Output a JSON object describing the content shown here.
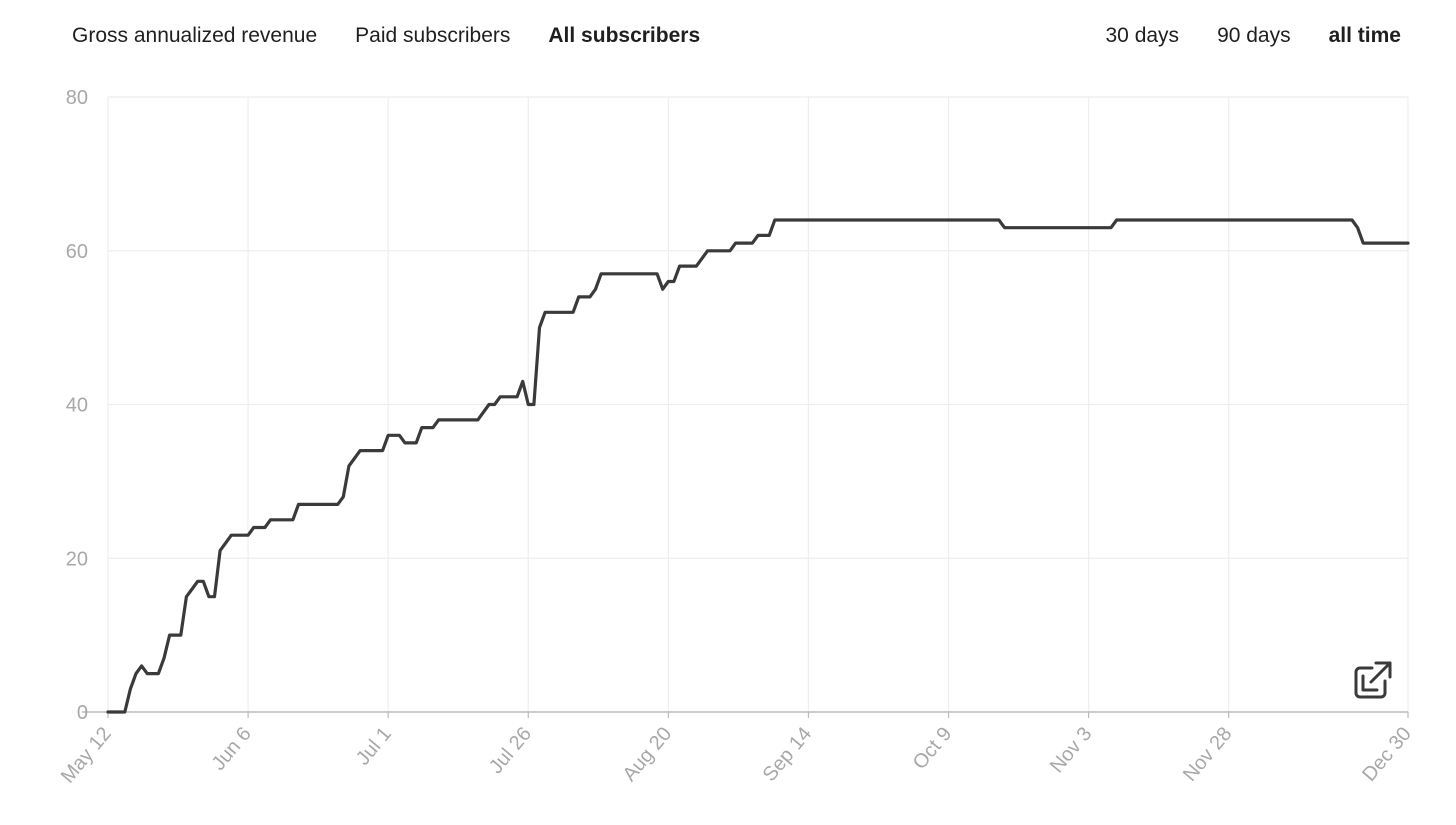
{
  "metric_tabs": [
    {
      "label": "Gross annualized revenue",
      "active": false
    },
    {
      "label": "Paid subscribers",
      "active": false
    },
    {
      "label": "All subscribers",
      "active": true
    }
  ],
  "range_tabs": [
    {
      "label": "30 days",
      "active": false
    },
    {
      "label": "90 days",
      "active": false
    },
    {
      "label": "all time",
      "active": true
    }
  ],
  "export_icon": "external-link-icon",
  "colors": {
    "line": "#3a3a3a",
    "grid": "#eeeeee",
    "axis": "#bbbbbb",
    "tick": "#a8a8a8"
  },
  "chart_data": {
    "type": "line",
    "title": "All subscribers",
    "xlabel": "",
    "ylabel": "",
    "xlim": [
      0,
      232
    ],
    "ylim": [
      0,
      80
    ],
    "y_ticks": [
      0,
      20,
      40,
      60,
      80
    ],
    "x_ticks": [
      {
        "day": 0,
        "label": "May 12"
      },
      {
        "day": 25,
        "label": "Jun 6"
      },
      {
        "day": 50,
        "label": "Jul 1"
      },
      {
        "day": 75,
        "label": "Jul 26"
      },
      {
        "day": 100,
        "label": "Aug 20"
      },
      {
        "day": 125,
        "label": "Sep 14"
      },
      {
        "day": 150,
        "label": "Oct 9"
      },
      {
        "day": 175,
        "label": "Nov 3"
      },
      {
        "day": 200,
        "label": "Nov 28"
      },
      {
        "day": 232,
        "label": "Dec 30"
      }
    ],
    "grid": true,
    "series": [
      {
        "name": "All subscribers",
        "points": [
          [
            0,
            0
          ],
          [
            3,
            0
          ],
          [
            4,
            3
          ],
          [
            5,
            5
          ],
          [
            6,
            6
          ],
          [
            7,
            5
          ],
          [
            9,
            5
          ],
          [
            10,
            7
          ],
          [
            11,
            10
          ],
          [
            13,
            10
          ],
          [
            14,
            15
          ],
          [
            15,
            16
          ],
          [
            16,
            17
          ],
          [
            17,
            17
          ],
          [
            18,
            15
          ],
          [
            19,
            15
          ],
          [
            20,
            21
          ],
          [
            21,
            22
          ],
          [
            22,
            23
          ],
          [
            25,
            23
          ],
          [
            26,
            24
          ],
          [
            28,
            24
          ],
          [
            29,
            25
          ],
          [
            33,
            25
          ],
          [
            34,
            27
          ],
          [
            41,
            27
          ],
          [
            42,
            28
          ],
          [
            43,
            32
          ],
          [
            45,
            34
          ],
          [
            49,
            34
          ],
          [
            50,
            36
          ],
          [
            52,
            36
          ],
          [
            53,
            35
          ],
          [
            55,
            35
          ],
          [
            56,
            37
          ],
          [
            58,
            37
          ],
          [
            59,
            38
          ],
          [
            66,
            38
          ],
          [
            68,
            40
          ],
          [
            69,
            40
          ],
          [
            70,
            41
          ],
          [
            73,
            41
          ],
          [
            74,
            43
          ],
          [
            75,
            40
          ],
          [
            76,
            40
          ],
          [
            77,
            50
          ],
          [
            78,
            52
          ],
          [
            83,
            52
          ],
          [
            84,
            54
          ],
          [
            86,
            54
          ],
          [
            87,
            55
          ],
          [
            88,
            57
          ],
          [
            98,
            57
          ],
          [
            99,
            55
          ],
          [
            100,
            56
          ],
          [
            101,
            56
          ],
          [
            102,
            58
          ],
          [
            105,
            58
          ],
          [
            107,
            60
          ],
          [
            111,
            60
          ],
          [
            112,
            61
          ],
          [
            115,
            61
          ],
          [
            116,
            62
          ],
          [
            118,
            62
          ],
          [
            119,
            64
          ],
          [
            159,
            64
          ],
          [
            160,
            63
          ],
          [
            179,
            63
          ],
          [
            180,
            64
          ],
          [
            222,
            64
          ],
          [
            223,
            63
          ],
          [
            224,
            61
          ],
          [
            232,
            61
          ]
        ]
      }
    ]
  }
}
